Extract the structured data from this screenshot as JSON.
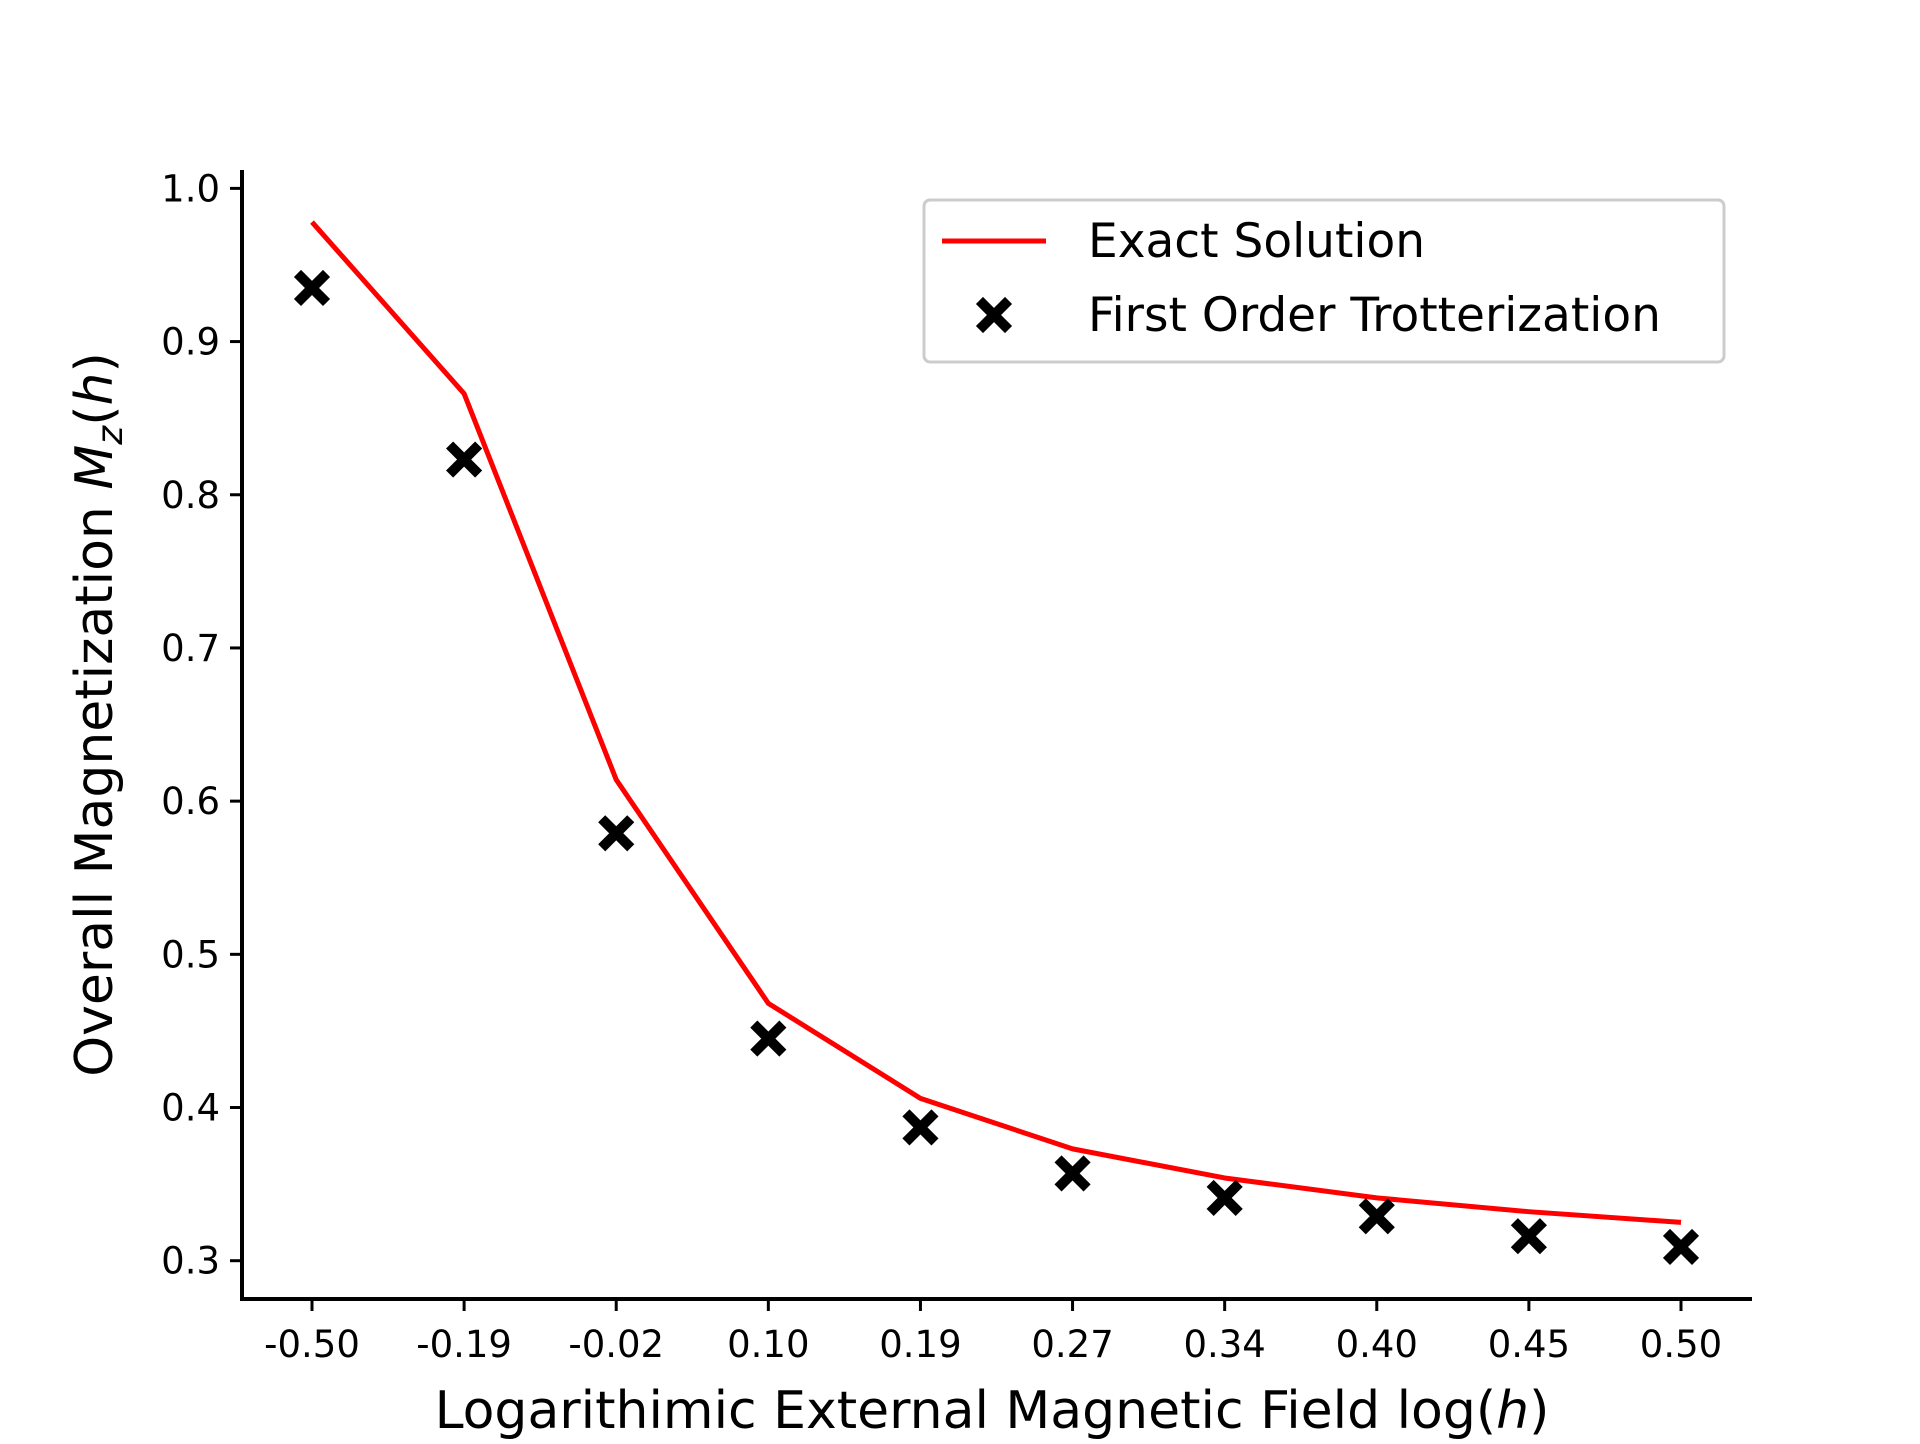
{
  "chart_data": {
    "type": "line",
    "xlabel": "Logarithimic External Magnetic Field log(h)",
    "ylabel": "Overall Magnetization M_z(h)",
    "xlabel_parts": {
      "prefix": "Logarithimic External Magnetic Field log(",
      "var": "h",
      "suffix": ")"
    },
    "ylabel_parts": {
      "prefix": "Overall Magnetization ",
      "var": "M",
      "sub": "z",
      "open": "(",
      "var2": "h",
      "close": ")"
    },
    "categories": [
      "-0.50",
      "-0.19",
      "-0.02",
      "0.10",
      "0.19",
      "0.27",
      "0.34",
      "0.40",
      "0.45",
      "0.50"
    ],
    "ylim": [
      0.275,
      1.012
    ],
    "yticks": [
      "0.3",
      "0.4",
      "0.5",
      "0.6",
      "0.7",
      "0.8",
      "0.9",
      "1.0"
    ],
    "series": [
      {
        "name": "Exact Solution",
        "style": "line",
        "color": "#ff0000",
        "values": [
          0.978,
          0.866,
          0.614,
          0.468,
          0.406,
          0.373,
          0.354,
          0.341,
          0.332,
          0.325
        ]
      },
      {
        "name": "First Order Trotterization",
        "style": "marker-x",
        "color": "#000000",
        "values": [
          0.935,
          0.823,
          0.579,
          0.445,
          0.387,
          0.357,
          0.341,
          0.329,
          0.316,
          0.309
        ]
      }
    ],
    "legend_position": "top-right",
    "grid": false
  }
}
